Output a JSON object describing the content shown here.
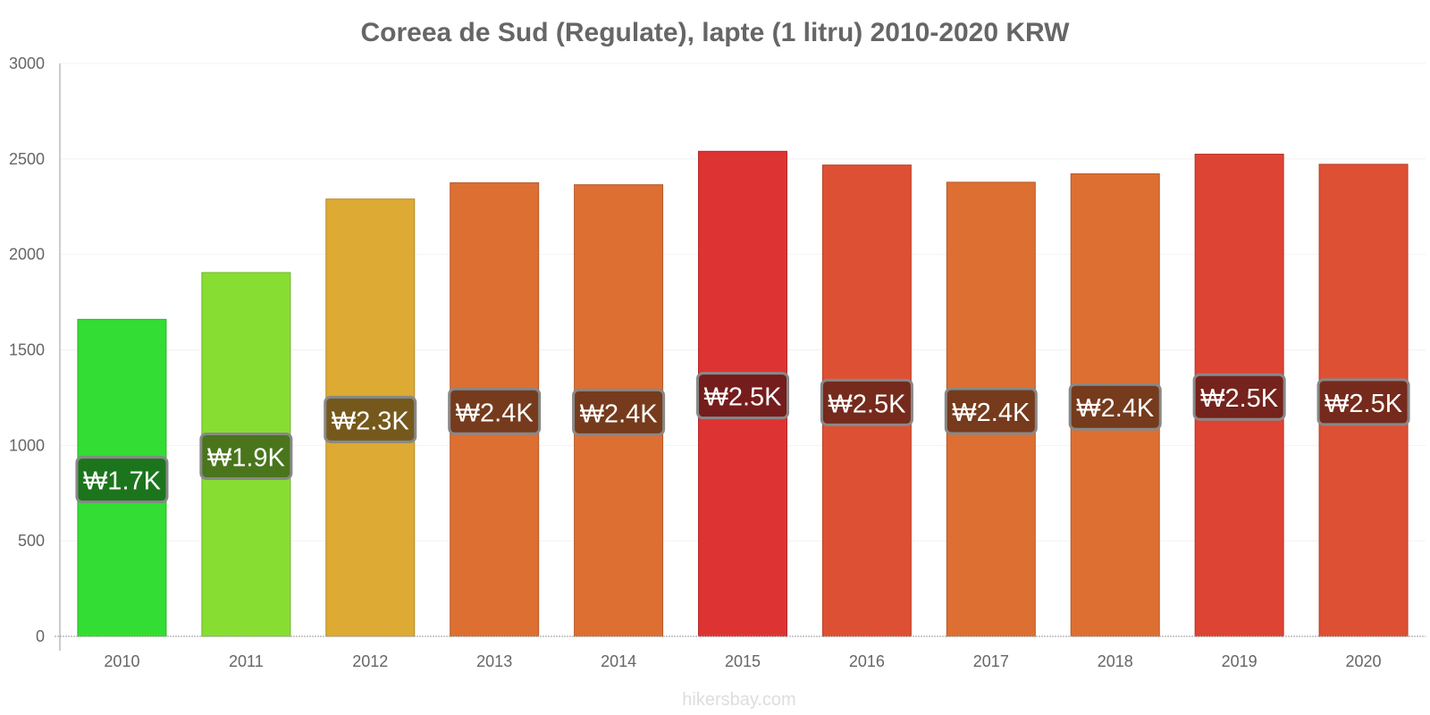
{
  "chart_data": {
    "type": "bar",
    "title": "Coreea de Sud (Regulate), lapte (1 litru) 2010-2020 KRW",
    "xlabel": "",
    "ylabel": "",
    "ylim": [
      0,
      3000
    ],
    "yticks": [
      0,
      500,
      1000,
      1500,
      2000,
      2500,
      3000
    ],
    "categories": [
      "2010",
      "2011",
      "2012",
      "2013",
      "2014",
      "2015",
      "2016",
      "2017",
      "2018",
      "2019",
      "2020"
    ],
    "values": [
      1660,
      1905,
      2290,
      2375,
      2365,
      2540,
      2468,
      2378,
      2422,
      2525,
      2472
    ],
    "data_labels": [
      "₩1.7K",
      "₩1.9K",
      "₩2.3K",
      "₩2.4K",
      "₩2.4K",
      "₩2.5K",
      "₩2.5K",
      "₩2.4K",
      "₩2.4K",
      "₩2.5K",
      "₩2.5K"
    ],
    "bar_colors": [
      "#33dd33",
      "#88dd33",
      "#ddaa33",
      "#dd6f33",
      "#dd6f33",
      "#dd3333",
      "#dd5033",
      "#dd6f33",
      "#dd6f33",
      "#dd4433",
      "#dd5033"
    ],
    "label_bg_colors": [
      "#1a6b1a",
      "#446b1a",
      "#6b531a",
      "#6b361a",
      "#6b361a",
      "#6b1a1a",
      "#6b271a",
      "#6b361a",
      "#6b361a",
      "#6b211a",
      "#6b271a"
    ],
    "grid": true,
    "legend": "none"
  },
  "watermark": "hikersbay.com"
}
